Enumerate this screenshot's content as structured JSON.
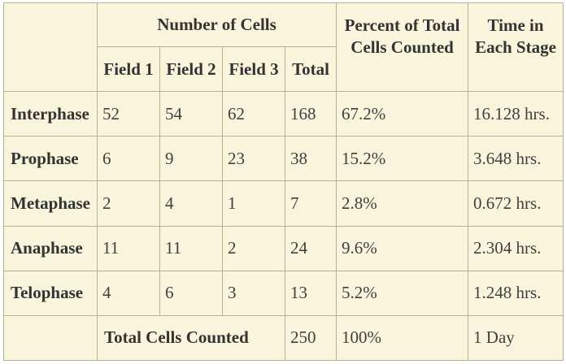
{
  "table": {
    "group_header": "Number of Cells",
    "percent_header": "Percent of Total Cells Counted",
    "time_header": "Time in Each Stage",
    "field_headers": [
      "Field 1",
      "Field 2",
      "Field 3",
      "Total"
    ],
    "rows": [
      {
        "stage": "Interphase",
        "field1": "52",
        "field2": "54",
        "field3": "62",
        "total": "168",
        "percent": "67.2%",
        "time": "16.128 hrs."
      },
      {
        "stage": "Prophase",
        "field1": "6",
        "field2": "9",
        "field3": "23",
        "total": "38",
        "percent": "15.2%",
        "time": "3.648 hrs."
      },
      {
        "stage": "Metaphase",
        "field1": "2",
        "field2": "4",
        "field3": "1",
        "total": "7",
        "percent": "2.8%",
        "time": "0.672 hrs."
      },
      {
        "stage": "Anaphase",
        "field1": "11",
        "field2": "11",
        "field3": "2",
        "total": "24",
        "percent": "9.6%",
        "time": "2.304 hrs."
      },
      {
        "stage": "Telophase",
        "field1": "4",
        "field2": "6",
        "field3": "3",
        "total": "13",
        "percent": "5.2%",
        "time": "1.248 hrs."
      }
    ],
    "footer": {
      "label": "Total Cells Counted",
      "total": "250",
      "percent": "100%",
      "time": "1 Day"
    }
  }
}
